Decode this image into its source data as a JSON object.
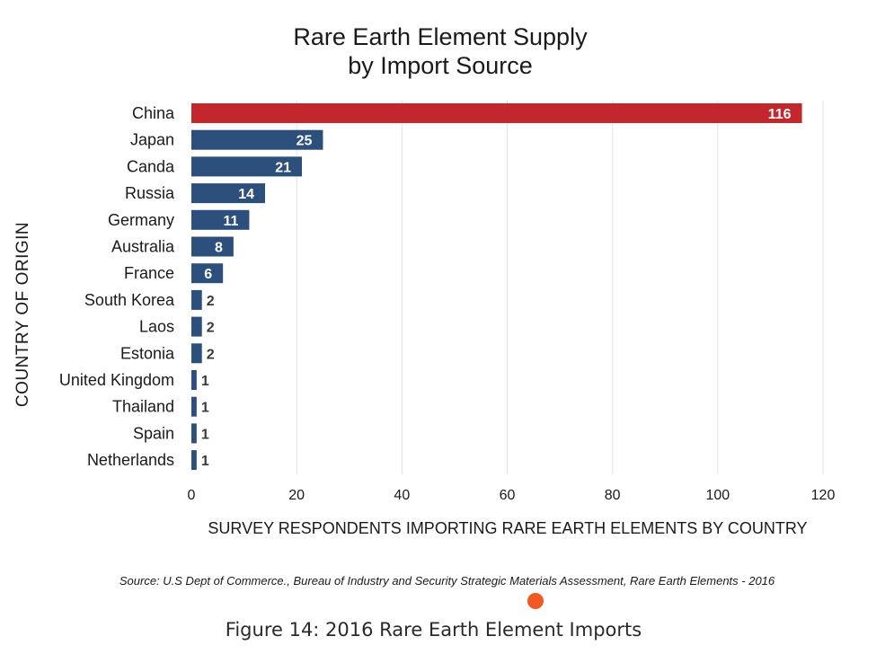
{
  "chart_data": {
    "type": "bar",
    "orientation": "horizontal",
    "title": [
      "Rare Earth Element Supply",
      "by Import Source"
    ],
    "xlabel": "SURVEY RESPONDENTS IMPORTING RARE EARTH ELEMENTS BY COUNTRY",
    "ylabel": "COUNTRY OF ORIGIN",
    "categories": [
      "China",
      "Japan",
      "Canda",
      "Russia",
      "Germany",
      "Australia",
      "France",
      "South Korea",
      "Laos",
      "Estonia",
      "United Kingdom",
      "Thailand",
      "Spain",
      "Netherlands"
    ],
    "values": [
      116,
      25,
      21,
      14,
      11,
      8,
      6,
      2,
      2,
      2,
      1,
      1,
      1,
      1
    ],
    "xlim": [
      0,
      120
    ],
    "xticks": [
      0,
      20,
      40,
      60,
      80,
      100,
      120
    ],
    "grid": "vertical",
    "colors": {
      "highlight": "#c1272d",
      "bar": "#2c4f7c"
    },
    "highlight_category": "China"
  },
  "source": "Source: U.S Dept of Commerce., Bureau of Industry and Security Strategic Materials Assessment, Rare Earth Elements - 2016",
  "caption": "Figure 14: 2016 Rare Earth Element Imports",
  "accent_color": "#f05a22"
}
